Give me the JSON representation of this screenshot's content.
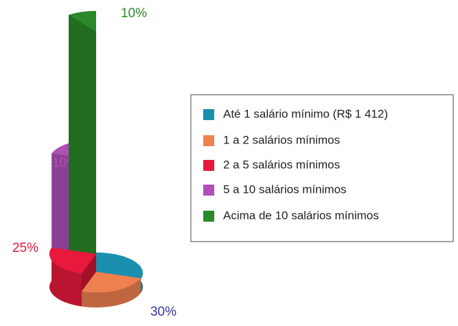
{
  "chart_data": {
    "type": "pie",
    "categories": [
      "Até 1 salário mínimo (R$ 1 412)",
      "1 a 2 salários mínimos",
      "2 a 5 salários mínimos",
      "5 a 10 salários mínimos",
      "Acima de 10 salários mínimos"
    ],
    "values": [
      30,
      25,
      25,
      10,
      10
    ],
    "value_labels": [
      "30%",
      null,
      "25%",
      "10%",
      "10%"
    ],
    "colors": [
      "#1a8fb0",
      "#ef8050",
      "#e8193c",
      "#b050b8",
      "#2a8a2a"
    ],
    "legend": "right"
  }
}
